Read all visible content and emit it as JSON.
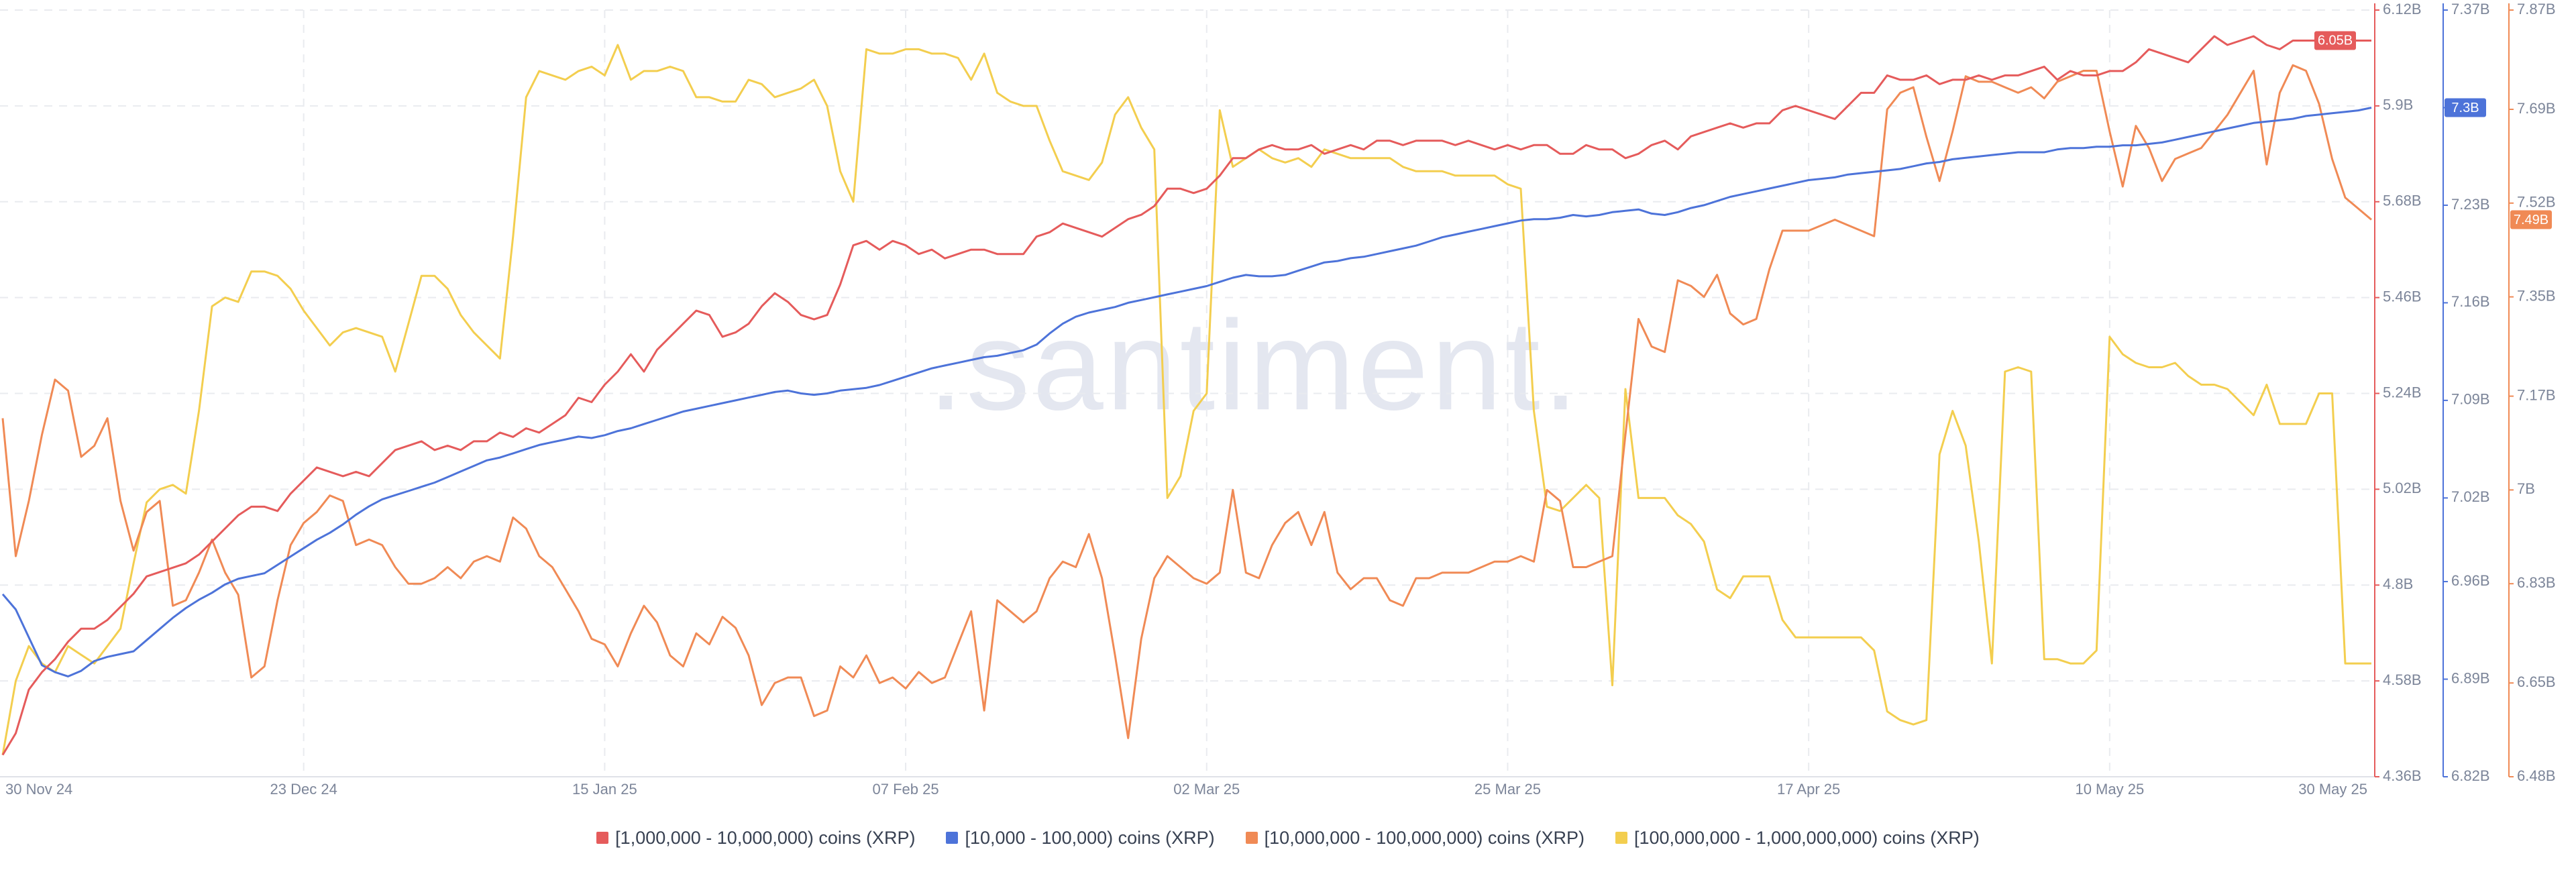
{
  "chart_data": {
    "type": "line",
    "watermark": ".santiment.",
    "grid": true,
    "categories": [
      "30 Nov 24",
      null,
      null,
      null,
      null,
      null,
      null,
      null,
      null,
      null,
      null,
      null,
      null,
      null,
      null,
      null,
      null,
      null,
      null,
      null,
      null,
      null,
      null,
      "23 Dec 24",
      null,
      null,
      null,
      null,
      null,
      null,
      null,
      null,
      null,
      null,
      null,
      null,
      null,
      null,
      null,
      null,
      null,
      null,
      null,
      null,
      null,
      null,
      "15 Jan 25",
      null,
      null,
      null,
      null,
      null,
      null,
      null,
      null,
      null,
      null,
      null,
      null,
      null,
      null,
      null,
      null,
      null,
      null,
      null,
      null,
      null,
      null,
      "07 Feb 25",
      null,
      null,
      null,
      null,
      null,
      null,
      null,
      null,
      null,
      null,
      null,
      null,
      null,
      null,
      null,
      null,
      null,
      null,
      null,
      null,
      null,
      null,
      "02 Mar 25",
      null,
      null,
      null,
      null,
      null,
      null,
      null,
      null,
      null,
      null,
      null,
      null,
      null,
      null,
      null,
      null,
      null,
      null,
      null,
      null,
      null,
      null,
      "25 Mar 25",
      null,
      null,
      null,
      null,
      null,
      null,
      null,
      null,
      null,
      null,
      null,
      null,
      null,
      null,
      null,
      null,
      null,
      null,
      null,
      null,
      null,
      null,
      "17 Apr 25",
      null,
      null,
      null,
      null,
      null,
      null,
      null,
      null,
      null,
      null,
      null,
      null,
      null,
      null,
      null,
      null,
      null,
      null,
      null,
      null,
      null,
      null,
      "10 May 25",
      null,
      null,
      null,
      null,
      null,
      null,
      null,
      null,
      null,
      null,
      null,
      null,
      null,
      null,
      null,
      null,
      null,
      null,
      null,
      "30 May 25"
    ],
    "ylim": [
      4.36,
      6.12
    ],
    "yticks": [
      {
        "value": 6.12,
        "label": "6.12B"
      },
      {
        "value": 5.9,
        "label": "5.9B"
      },
      {
        "value": 5.68,
        "label": "5.68B"
      },
      {
        "value": 5.46,
        "label": "5.46B"
      },
      {
        "value": 5.24,
        "label": "5.24B"
      },
      {
        "value": 5.02,
        "label": "5.02B"
      },
      {
        "value": 4.8,
        "label": "4.8B"
      },
      {
        "value": 4.58,
        "label": "4.58B"
      },
      {
        "value": 4.36,
        "label": "4.36B"
      }
    ],
    "y2lim": [
      6.82,
      7.37
    ],
    "y2ticks": [
      {
        "value": 7.37,
        "label": "7.37B"
      },
      {
        "value": 7.3,
        "label": "7.3B"
      },
      {
        "value": 7.23,
        "label": "7.23B"
      },
      {
        "value": 7.16,
        "label": "7.16B"
      },
      {
        "value": 7.09,
        "label": "7.09B"
      },
      {
        "value": 7.02,
        "label": "7.02B"
      },
      {
        "value": 6.96,
        "label": "6.96B"
      },
      {
        "value": 6.89,
        "label": "6.89B"
      },
      {
        "value": 6.82,
        "label": "6.82B"
      }
    ],
    "y3lim": [
      6.48,
      7.87
    ],
    "y3ticks": [
      {
        "value": 7.87,
        "label": "7.87B"
      },
      {
        "value": 7.69,
        "label": "7.69B"
      },
      {
        "value": 7.52,
        "label": "7.52B"
      },
      {
        "value": 7.35,
        "label": "7.35B"
      },
      {
        "value": 7.17,
        "label": "7.17B"
      },
      {
        "value": 7,
        "label": "7B"
      },
      {
        "value": 6.83,
        "label": "6.83B"
      },
      {
        "value": 6.65,
        "label": "6.65B"
      },
      {
        "value": 6.48,
        "label": "6.48B"
      }
    ],
    "series": [
      {
        "name": "[1,000,000 - 10,000,000) coins (XRP)",
        "color": "#e55b5b",
        "axis": "y",
        "last_label": "6.05B",
        "values": [
          4.41,
          4.46,
          4.56,
          4.6,
          4.63,
          4.67,
          4.7,
          4.7,
          4.72,
          4.75,
          4.78,
          4.82,
          4.83,
          4.84,
          4.85,
          4.87,
          4.9,
          4.93,
          4.96,
          4.98,
          4.98,
          4.97,
          5.01,
          5.04,
          5.07,
          5.06,
          5.05,
          5.06,
          5.05,
          5.08,
          5.11,
          5.12,
          5.13,
          5.11,
          5.12,
          5.11,
          5.13,
          5.13,
          5.15,
          5.14,
          5.16,
          5.15,
          5.17,
          5.19,
          5.23,
          5.22,
          5.26,
          5.29,
          5.33,
          5.29,
          5.34,
          5.37,
          5.4,
          5.43,
          5.42,
          5.37,
          5.38,
          5.4,
          5.44,
          5.47,
          5.45,
          5.42,
          5.41,
          5.42,
          5.49,
          5.58,
          5.59,
          5.57,
          5.59,
          5.58,
          5.56,
          5.57,
          5.55,
          5.56,
          5.57,
          5.57,
          5.56,
          5.56,
          5.56,
          5.6,
          5.61,
          5.63,
          5.62,
          5.61,
          5.6,
          5.62,
          5.64,
          5.65,
          5.67,
          5.71,
          5.71,
          5.7,
          5.71,
          5.74,
          5.78,
          5.78,
          5.8,
          5.81,
          5.8,
          5.8,
          5.81,
          5.79,
          5.8,
          5.81,
          5.8,
          5.82,
          5.82,
          5.81,
          5.82,
          5.82,
          5.82,
          5.81,
          5.82,
          5.81,
          5.8,
          5.81,
          5.8,
          5.81,
          5.81,
          5.79,
          5.79,
          5.81,
          5.8,
          5.8,
          5.78,
          5.79,
          5.81,
          5.82,
          5.8,
          5.83,
          5.84,
          5.85,
          5.86,
          5.85,
          5.86,
          5.86,
          5.89,
          5.9,
          5.89,
          5.88,
          5.87,
          5.9,
          5.93,
          5.93,
          5.97,
          5.96,
          5.96,
          5.97,
          5.95,
          5.96,
          5.96,
          5.97,
          5.96,
          5.97,
          5.97,
          5.98,
          5.99,
          5.96,
          5.98,
          5.97,
          5.97,
          5.98,
          5.98,
          6.0,
          6.03,
          6.02,
          6.01,
          6.0,
          6.03,
          6.06,
          6.04,
          6.05,
          6.06,
          6.04,
          6.03,
          6.05,
          6.05,
          6.05,
          6.06,
          6.05,
          6.05,
          6.05
        ]
      },
      {
        "name": "[10,000 - 100,000) coins (XRP)",
        "color": "#4d73d9",
        "axis": "y2",
        "last_label": "7.3B",
        "values": [
          6.951,
          6.94,
          6.92,
          6.9,
          6.895,
          6.892,
          6.896,
          6.903,
          6.906,
          6.908,
          6.91,
          6.918,
          6.926,
          6.934,
          6.941,
          6.947,
          6.952,
          6.958,
          6.962,
          6.964,
          6.966,
          6.972,
          6.978,
          6.984,
          6.99,
          6.995,
          7.001,
          7.008,
          7.014,
          7.019,
          7.022,
          7.025,
          7.028,
          7.031,
          7.035,
          7.039,
          7.043,
          7.047,
          7.049,
          7.052,
          7.055,
          7.058,
          7.06,
          7.062,
          7.064,
          7.063,
          7.065,
          7.068,
          7.07,
          7.073,
          7.076,
          7.079,
          7.082,
          7.084,
          7.086,
          7.088,
          7.09,
          7.092,
          7.094,
          7.096,
          7.097,
          7.095,
          7.094,
          7.095,
          7.097,
          7.098,
          7.099,
          7.101,
          7.104,
          7.107,
          7.11,
          7.113,
          7.115,
          7.117,
          7.119,
          7.121,
          7.122,
          7.124,
          7.126,
          7.13,
          7.138,
          7.145,
          7.15,
          7.153,
          7.155,
          7.157,
          7.16,
          7.162,
          7.164,
          7.166,
          7.168,
          7.17,
          7.172,
          7.175,
          7.178,
          7.18,
          7.179,
          7.179,
          7.18,
          7.183,
          7.186,
          7.189,
          7.19,
          7.192,
          7.193,
          7.195,
          7.197,
          7.199,
          7.201,
          7.204,
          7.207,
          7.209,
          7.211,
          7.213,
          7.215,
          7.217,
          7.219,
          7.22,
          7.22,
          7.221,
          7.223,
          7.222,
          7.223,
          7.225,
          7.226,
          7.227,
          7.224,
          7.223,
          7.225,
          7.228,
          7.23,
          7.233,
          7.236,
          7.238,
          7.24,
          7.242,
          7.244,
          7.246,
          7.248,
          7.249,
          7.25,
          7.252,
          7.253,
          7.254,
          7.255,
          7.256,
          7.258,
          7.26,
          7.261,
          7.263,
          7.264,
          7.265,
          7.266,
          7.267,
          7.268,
          7.268,
          7.268,
          7.27,
          7.271,
          7.271,
          7.272,
          7.272,
          7.273,
          7.273,
          7.274,
          7.275,
          7.277,
          7.279,
          7.281,
          7.283,
          7.285,
          7.287,
          7.289,
          7.29,
          7.291,
          7.292,
          7.294,
          7.295,
          7.296,
          7.297,
          7.298,
          7.3
        ]
      },
      {
        "name": "[10,000,000 - 100,000,000) coins (XRP)",
        "color": "#f08a55",
        "axis": "y3",
        "last_label": "7.49B",
        "values": [
          7.13,
          6.88,
          6.98,
          7.1,
          7.2,
          7.18,
          7.06,
          7.08,
          7.13,
          6.98,
          6.89,
          6.96,
          6.98,
          6.79,
          6.8,
          6.85,
          6.91,
          6.85,
          6.81,
          6.66,
          6.68,
          6.8,
          6.9,
          6.94,
          6.96,
          6.99,
          6.98,
          6.9,
          6.91,
          6.9,
          6.86,
          6.83,
          6.83,
          6.84,
          6.86,
          6.84,
          6.87,
          6.88,
          6.87,
          6.95,
          6.93,
          6.88,
          6.86,
          6.82,
          6.78,
          6.73,
          6.72,
          6.68,
          6.74,
          6.79,
          6.76,
          6.7,
          6.68,
          6.74,
          6.72,
          6.77,
          6.75,
          6.7,
          6.61,
          6.65,
          6.66,
          6.66,
          6.59,
          6.6,
          6.68,
          6.66,
          6.7,
          6.65,
          6.66,
          6.64,
          6.67,
          6.65,
          6.66,
          6.72,
          6.78,
          6.6,
          6.8,
          6.78,
          6.76,
          6.78,
          6.84,
          6.87,
          6.86,
          6.92,
          6.84,
          6.7,
          6.55,
          6.73,
          6.84,
          6.88,
          6.86,
          6.84,
          6.83,
          6.85,
          7.0,
          6.85,
          6.84,
          6.9,
          6.94,
          6.96,
          6.9,
          6.96,
          6.85,
          6.82,
          6.84,
          6.84,
          6.8,
          6.79,
          6.84,
          6.84,
          6.85,
          6.85,
          6.85,
          6.86,
          6.87,
          6.87,
          6.88,
          6.87,
          7.0,
          6.98,
          6.86,
          6.86,
          6.87,
          6.88,
          7.1,
          7.31,
          7.26,
          7.25,
          7.38,
          7.37,
          7.35,
          7.39,
          7.32,
          7.3,
          7.31,
          7.4,
          7.47,
          7.47,
          7.47,
          7.48,
          7.49,
          7.48,
          7.47,
          7.46,
          7.69,
          7.72,
          7.73,
          7.64,
          7.56,
          7.65,
          7.75,
          7.74,
          7.74,
          7.73,
          7.72,
          7.73,
          7.71,
          7.74,
          7.75,
          7.76,
          7.76,
          7.65,
          7.55,
          7.66,
          7.62,
          7.56,
          7.6,
          7.61,
          7.62,
          7.65,
          7.68,
          7.72,
          7.76,
          7.59,
          7.72,
          7.77,
          7.76,
          7.7,
          7.6,
          7.53,
          7.51,
          7.49
        ]
      },
      {
        "name": "[100,000,000 - 1,000,000,000) coins (XRP)",
        "color": "#f3ce4f",
        "axis": "y",
        "values": [
          4.41,
          4.58,
          4.66,
          4.62,
          4.6,
          4.66,
          4.64,
          4.62,
          4.66,
          4.7,
          4.85,
          4.99,
          5.02,
          5.03,
          5.01,
          5.2,
          5.44,
          5.46,
          5.45,
          5.52,
          5.52,
          5.51,
          5.48,
          5.43,
          5.39,
          5.35,
          5.38,
          5.39,
          5.38,
          5.37,
          5.29,
          5.4,
          5.51,
          5.51,
          5.48,
          5.42,
          5.38,
          5.35,
          5.32,
          5.6,
          5.92,
          5.98,
          5.97,
          5.96,
          5.98,
          5.99,
          5.97,
          6.04,
          5.96,
          5.98,
          5.98,
          5.99,
          5.98,
          5.92,
          5.92,
          5.91,
          5.91,
          5.96,
          5.95,
          5.92,
          5.93,
          5.94,
          5.96,
          5.9,
          5.75,
          5.68,
          6.03,
          6.02,
          6.02,
          6.03,
          6.03,
          6.02,
          6.02,
          6.01,
          5.96,
          6.02,
          5.93,
          5.91,
          5.9,
          5.9,
          5.82,
          5.75,
          5.74,
          5.73,
          5.77,
          5.88,
          5.92,
          5.85,
          5.8,
          5.0,
          5.05,
          5.2,
          5.24,
          5.89,
          5.76,
          5.78,
          5.8,
          5.78,
          5.77,
          5.78,
          5.76,
          5.8,
          5.79,
          5.78,
          5.78,
          5.78,
          5.78,
          5.76,
          5.75,
          5.75,
          5.75,
          5.74,
          5.74,
          5.74,
          5.74,
          5.72,
          5.71,
          5.2,
          4.98,
          4.97,
          5.0,
          5.03,
          5.0,
          4.57,
          5.25,
          5.0,
          5.0,
          5.0,
          4.96,
          4.94,
          4.9,
          4.79,
          4.77,
          4.82,
          4.82,
          4.82,
          4.72,
          4.68,
          4.68,
          4.68,
          4.68,
          4.68,
          4.68,
          4.65,
          4.51,
          4.49,
          4.48,
          4.49,
          5.1,
          5.2,
          5.12,
          4.9,
          4.62,
          5.29,
          5.3,
          5.29,
          4.63,
          4.63,
          4.62,
          4.62,
          4.65,
          5.37,
          5.33,
          5.31,
          5.3,
          5.3,
          5.31,
          5.28,
          5.26,
          5.26,
          5.25,
          5.22,
          5.19,
          5.26,
          5.17,
          5.17,
          5.17,
          5.24,
          5.24,
          4.62,
          4.62,
          4.62
        ]
      }
    ]
  }
}
